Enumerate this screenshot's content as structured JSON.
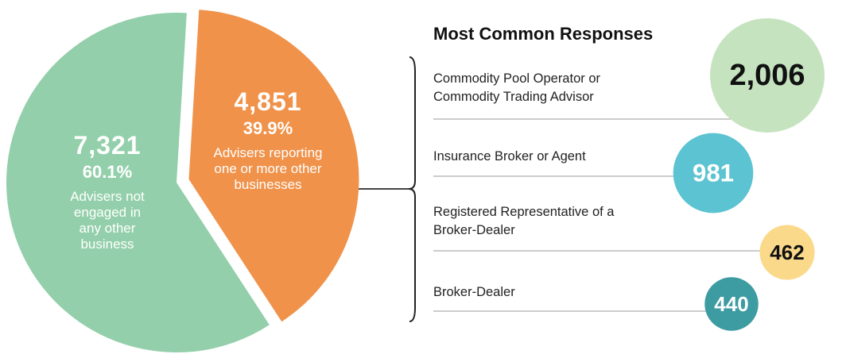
{
  "chart_data": [
    {
      "type": "pie",
      "categories": [
        "Advisers not engaged in any other business",
        "Advisers reporting one or more other businesses"
      ],
      "values": [
        7321,
        4851
      ],
      "value_labels": [
        "7,321",
        "4,851"
      ],
      "percents": [
        60.1,
        39.9
      ],
      "percent_labels": [
        "60.1%",
        "39.9%"
      ],
      "colors": [
        "#93cfaa",
        "#f0924a"
      ]
    },
    {
      "type": "bubble",
      "title": "Most Common Responses",
      "categories": [
        "Commodity Pool Operator or Commodity Trading Advisor",
        "Insurance Broker or Agent",
        "Registered Representative of a Broker-Dealer",
        "Broker-Dealer"
      ],
      "values": [
        2006,
        981,
        462,
        440
      ],
      "value_labels": [
        "2,006",
        "981",
        "462",
        "440"
      ],
      "colors": [
        "#c5e3be",
        "#5bc3d1",
        "#fbd98a",
        "#3d9ba2"
      ]
    }
  ]
}
